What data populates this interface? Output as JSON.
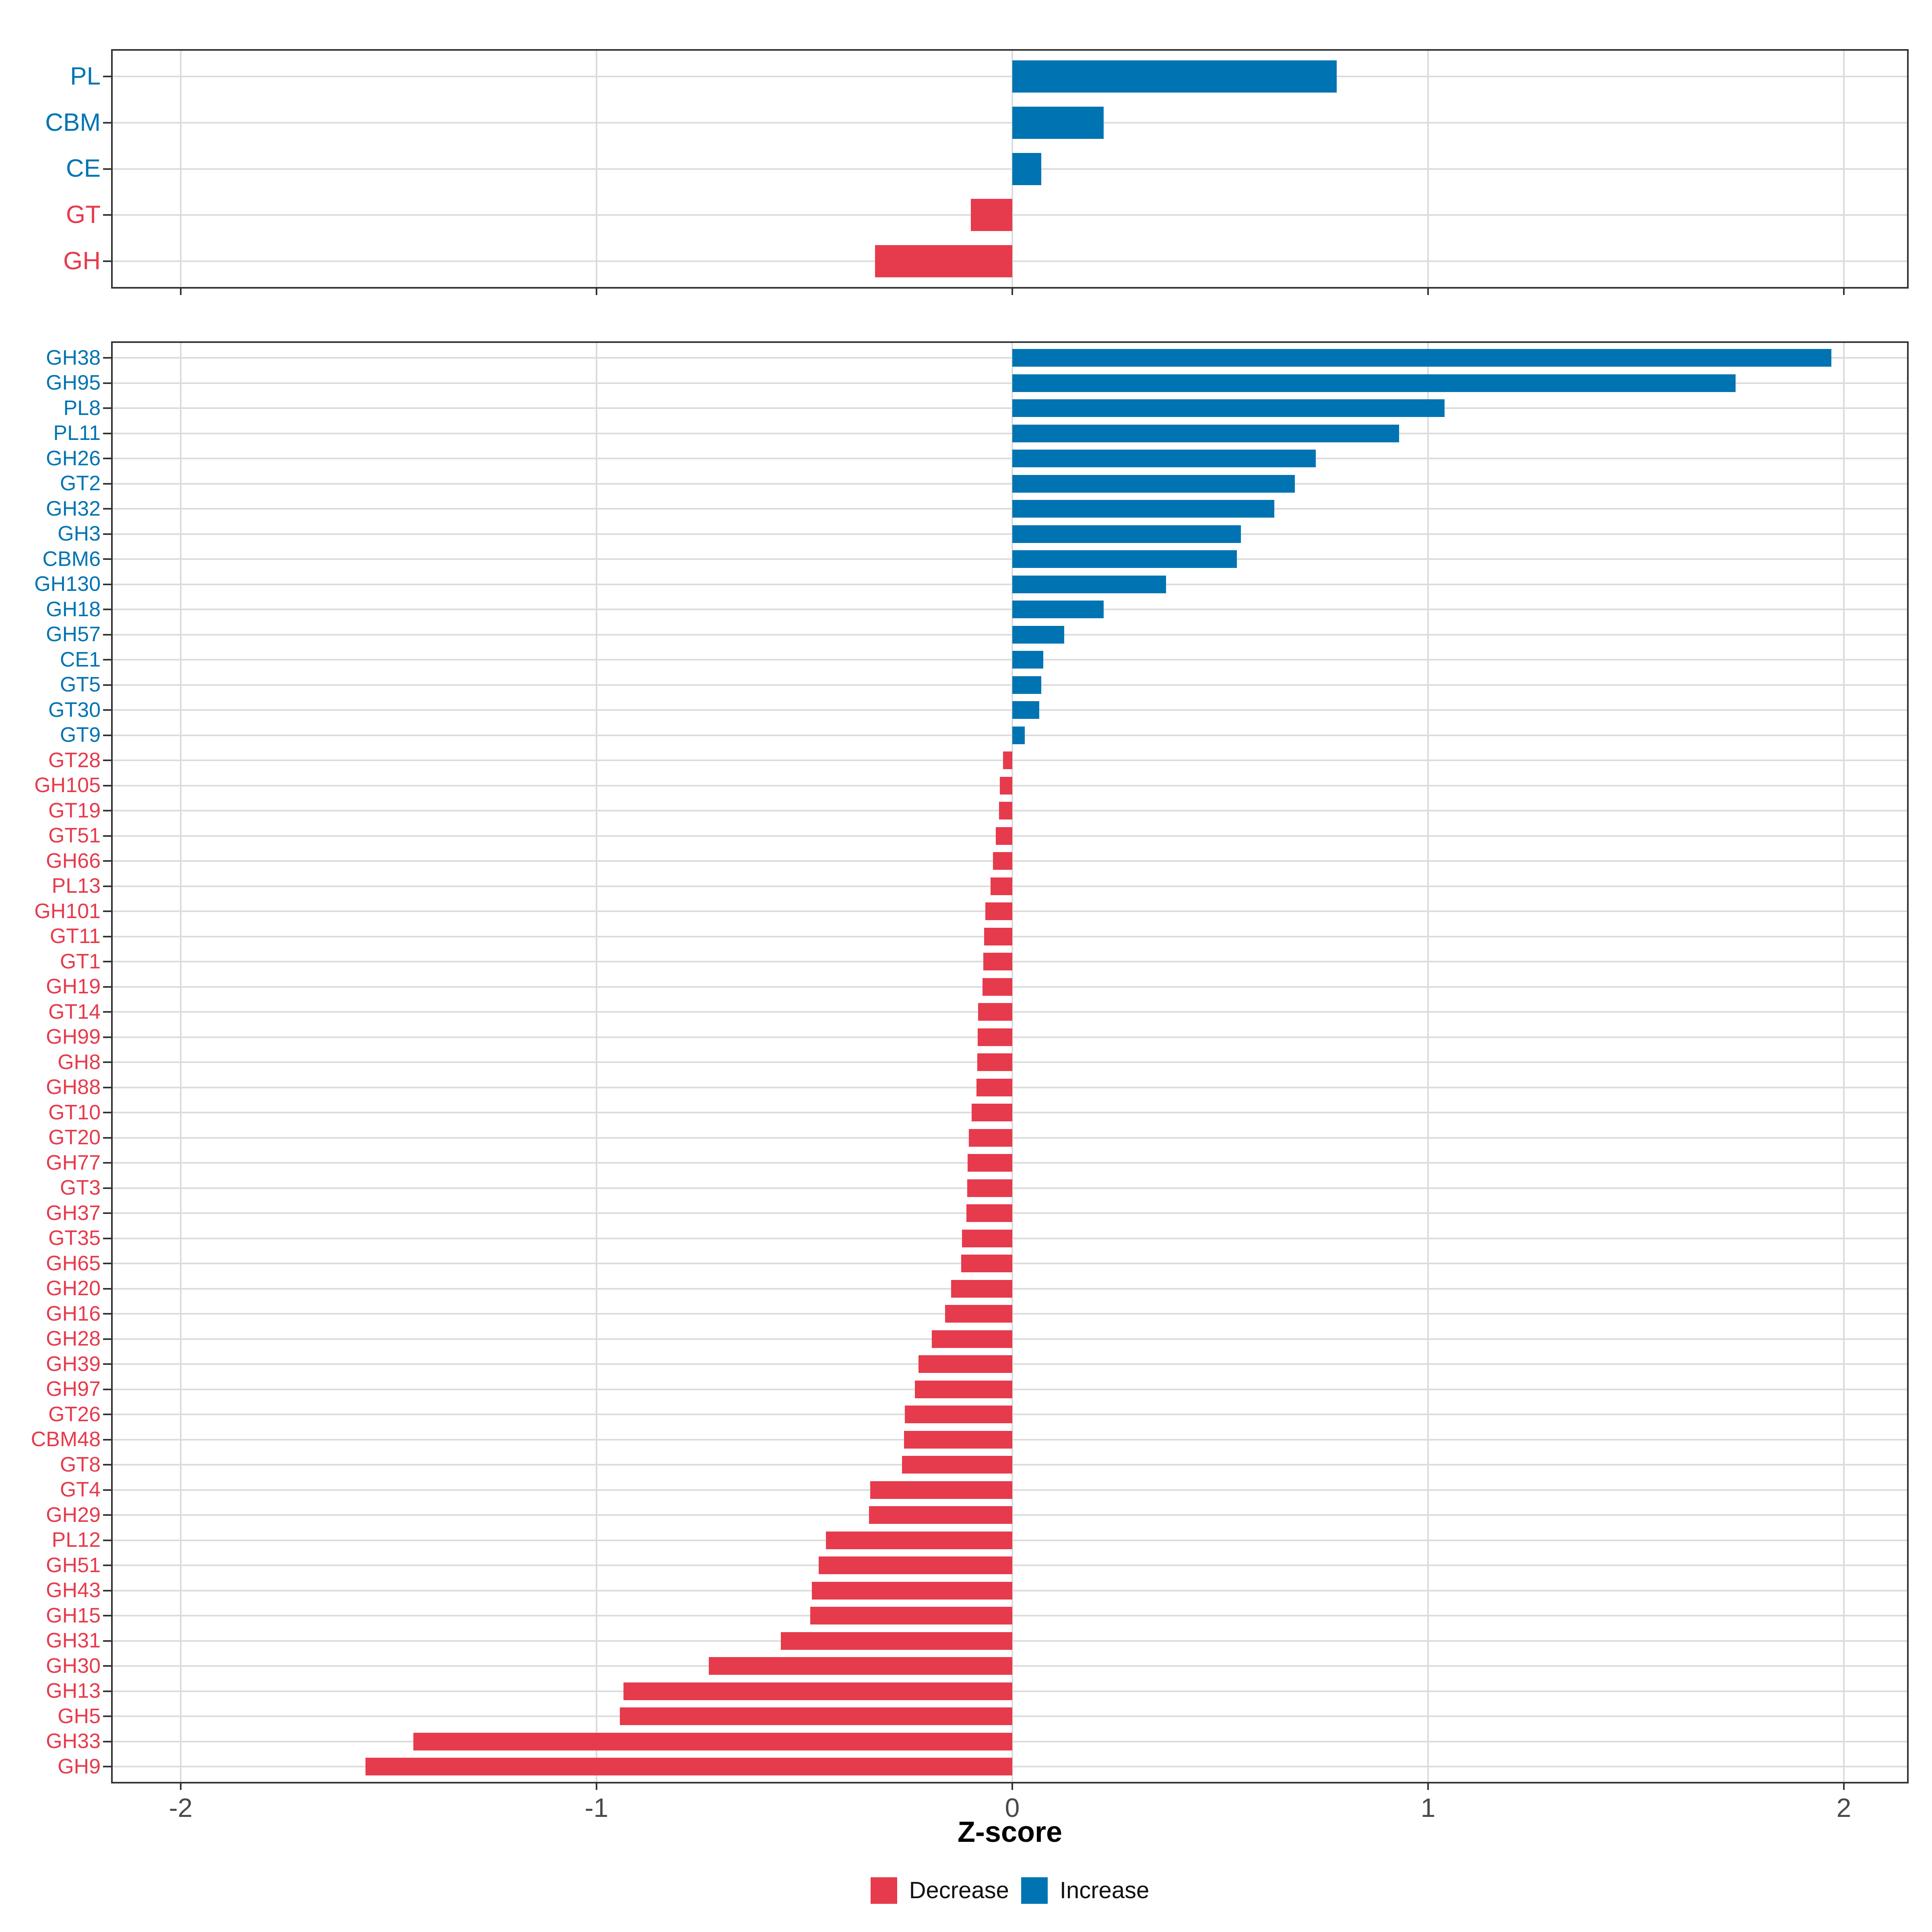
{
  "axis": {
    "title": "Z-score",
    "tick_labels": [
      "-2",
      "-1",
      "0",
      "1",
      "2"
    ]
  },
  "legend": {
    "position": "bottom",
    "items": [
      {
        "label": "Decrease",
        "color": "#E63B4C"
      },
      {
        "label": "Increase",
        "color": "#0074B2"
      }
    ]
  },
  "colors": {
    "Increase": "#0074B2",
    "Decrease": "#E63B4C",
    "grid": "#DCDCDC",
    "panel_border": "#333333",
    "tick_mark": "#333333",
    "tick_label": "#4A4A4A",
    "axis_title": "#000000",
    "background": "#FFFFFF"
  },
  "chart_data": [
    {
      "id": "category-summary",
      "type": "bar",
      "orientation": "horizontal",
      "title": "",
      "xlabel": "",
      "ylabel": "",
      "xlim": [
        -2.17,
        2.16
      ],
      "x_ticks": [
        -2,
        -1,
        0,
        1,
        2
      ],
      "grid": true,
      "categories": [
        "PL",
        "CBM",
        "CE",
        "GT",
        "GH"
      ],
      "values": [
        0.78,
        0.22,
        0.07,
        -0.1,
        -0.33
      ],
      "direction": [
        "Increase",
        "Increase",
        "Increase",
        "Decrease",
        "Decrease"
      ]
    },
    {
      "id": "family-detail",
      "type": "bar",
      "orientation": "horizontal",
      "title": "",
      "xlabel": "Z-score",
      "ylabel": "",
      "xlim": [
        -2.17,
        2.16
      ],
      "x_ticks": [
        -2,
        -1,
        0,
        1,
        2
      ],
      "grid": true,
      "categories": [
        "GH38",
        "GH95",
        "PL8",
        "PL11",
        "GH26",
        "GT2",
        "GH32",
        "GH3",
        "CBM6",
        "GH130",
        "GH18",
        "GH57",
        "CE1",
        "GT5",
        "GT30",
        "GT9",
        "GT28",
        "GH105",
        "GT19",
        "GT51",
        "GH66",
        "PL13",
        "GH101",
        "GT11",
        "GT1",
        "GH19",
        "GT14",
        "GH99",
        "GH8",
        "GH88",
        "GT10",
        "GT20",
        "GH77",
        "GT3",
        "GH37",
        "GT35",
        "GH65",
        "GH20",
        "GH16",
        "GH28",
        "GH39",
        "GH97",
        "GT26",
        "CBM48",
        "GT8",
        "GT4",
        "GH29",
        "PL12",
        "GH51",
        "GH43",
        "GH15",
        "GH31",
        "GH30",
        "GH13",
        "GH5",
        "GH33",
        "GH9"
      ],
      "values": [
        1.97,
        1.74,
        1.04,
        0.93,
        0.73,
        0.68,
        0.63,
        0.55,
        0.54,
        0.37,
        0.22,
        0.125,
        0.075,
        0.07,
        0.065,
        0.03,
        -0.022,
        -0.03,
        -0.032,
        -0.04,
        -0.046,
        -0.052,
        -0.065,
        -0.068,
        -0.07,
        -0.072,
        -0.082,
        -0.083,
        -0.084,
        -0.086,
        -0.098,
        -0.105,
        -0.107,
        -0.108,
        -0.11,
        -0.121,
        -0.123,
        -0.147,
        -0.162,
        -0.194,
        -0.226,
        -0.234,
        -0.258,
        -0.26,
        -0.265,
        -0.342,
        -0.345,
        -0.448,
        -0.466,
        -0.482,
        -0.486,
        -0.557,
        -0.73,
        -0.935,
        -0.944,
        -1.44,
        -1.556
      ],
      "direction": [
        "Increase",
        "Increase",
        "Increase",
        "Increase",
        "Increase",
        "Increase",
        "Increase",
        "Increase",
        "Increase",
        "Increase",
        "Increase",
        "Increase",
        "Increase",
        "Increase",
        "Increase",
        "Increase",
        "Decrease",
        "Decrease",
        "Decrease",
        "Decrease",
        "Decrease",
        "Decrease",
        "Decrease",
        "Decrease",
        "Decrease",
        "Decrease",
        "Decrease",
        "Decrease",
        "Decrease",
        "Decrease",
        "Decrease",
        "Decrease",
        "Decrease",
        "Decrease",
        "Decrease",
        "Decrease",
        "Decrease",
        "Decrease",
        "Decrease",
        "Decrease",
        "Decrease",
        "Decrease",
        "Decrease",
        "Decrease",
        "Decrease",
        "Decrease",
        "Decrease",
        "Decrease",
        "Decrease",
        "Decrease",
        "Decrease",
        "Decrease",
        "Decrease",
        "Decrease",
        "Decrease",
        "Decrease",
        "Decrease"
      ]
    }
  ]
}
